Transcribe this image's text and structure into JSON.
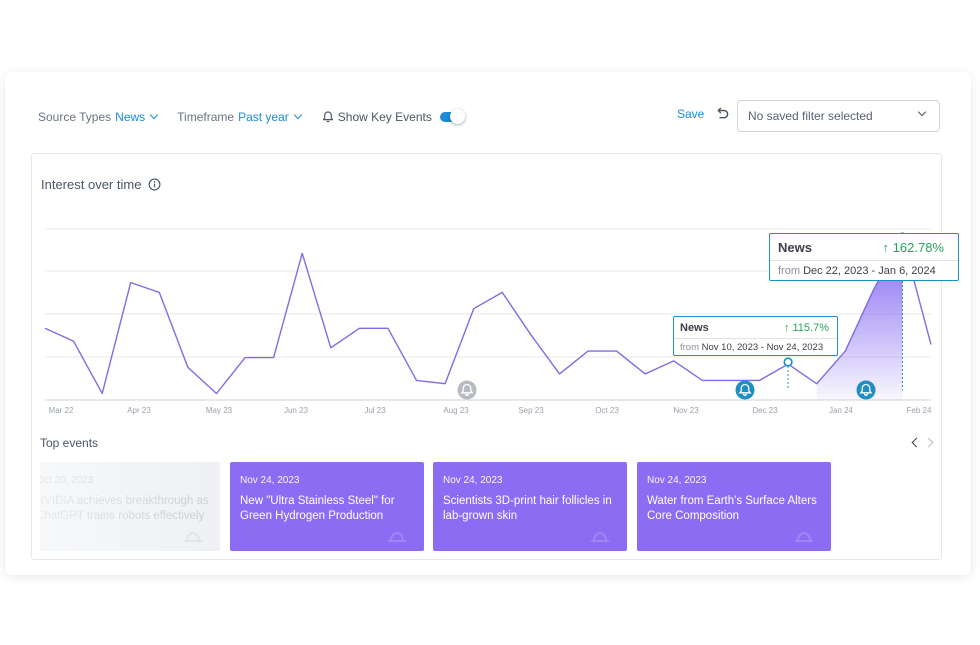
{
  "toolbar": {
    "source_types_label": "Source Types",
    "source_types_value": "News",
    "timeframe_label": "Timeframe",
    "timeframe_value": "Past year",
    "show_key_events_label": "Show Key Events",
    "show_key_events_on": true,
    "save_label": "Save",
    "saved_filter_placeholder": "No saved filter selected"
  },
  "chart_card": {
    "title": "Interest over time"
  },
  "chart_data": {
    "type": "line",
    "title": "Interest over time",
    "x_tick_labels": [
      "Mar 22",
      "Apr 23",
      "May 23",
      "Jun 23",
      "Jul 23",
      "Aug 23",
      "Sep 23",
      "Oct 23",
      "Nov 23",
      "Dec 23",
      "Jan 24",
      "Feb 24"
    ],
    "ylim": [
      0,
      100
    ],
    "grid": true,
    "series": [
      {
        "values": [
          44,
          36,
          4,
          72,
          66,
          20,
          4,
          26,
          26,
          90,
          32,
          44,
          44,
          12,
          10,
          56,
          66,
          40,
          16,
          30,
          30,
          16,
          24,
          12,
          12,
          12,
          22,
          10,
          30,
          68,
          100,
          34
        ]
      }
    ],
    "highlights": [
      {
        "source": "News",
        "change": "115.7%",
        "from_label": "from",
        "range": "Nov 10, 2023 - Nov 24, 2023"
      },
      {
        "source": "News",
        "change": "162.78%",
        "from_label": "from",
        "range": "Dec 22, 2023 - Jan 6, 2024"
      }
    ],
    "key_event_markers": 3
  },
  "colors": {
    "accent": "#1a8cd8",
    "line": "#7c6ee6",
    "event_card": "#8b6cf2",
    "positive": "#22a65a",
    "marker_active": "#1f8ec4",
    "marker_inactive": "#b8bcc2"
  },
  "icons": {
    "bell": "bell-icon",
    "undo": "undo-icon",
    "info": "info-icon",
    "chevron": "chevron-down-icon",
    "arrow_up": "arrow-up-icon"
  },
  "events": {
    "title": "Top events",
    "cards": [
      {
        "date": "Oct 20, 2023",
        "title": "NVIDIA achieves breakthrough as ChatGPT trains robots effectively",
        "faded": true
      },
      {
        "date": "Nov 24, 2023",
        "title": "New \"Ultra Stainless Steel\" for Green Hydrogen Production",
        "faded": false
      },
      {
        "date": "Nov 24, 2023",
        "title": "Scientists 3D-print hair follicles in lab-grown skin",
        "faded": false
      },
      {
        "date": "Nov 24, 2023",
        "title": "Water from Earth's Surface Alters Core Composition",
        "faded": false
      }
    ]
  }
}
